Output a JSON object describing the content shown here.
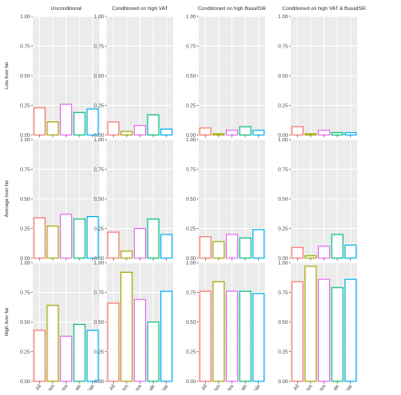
{
  "chart_data": {
    "type": "bar",
    "panel_type": "faceted-bar-grid",
    "col_titles": [
      "Unconditional",
      "Conditioned on high VAT",
      "Conditioned on high BasalISR",
      "Conditioned on high VAT & BasalISR"
    ],
    "row_titles": [
      "Low liver fat",
      "Average liver fat",
      "High liver fat"
    ],
    "categories": [
      "All",
      "Diabetes",
      "Non-diabetes",
      "Female",
      "Male"
    ],
    "category_colors": [
      "#F8766D",
      "#A3A500",
      "#E76BF3",
      "#00BF7D",
      "#00B0F6"
    ],
    "y_ticks": [
      0.0,
      0.25,
      0.5,
      0.75,
      1.0
    ],
    "y_tick_labels": [
      "0.00",
      "0.25",
      "0.50",
      "0.75",
      "1.00"
    ],
    "ylim": [
      0,
      1
    ],
    "grid": true,
    "panels": [
      [
        [
          0.23,
          0.11,
          0.26,
          0.19,
          0.22
        ],
        [
          0.11,
          0.03,
          0.08,
          0.17,
          0.05
        ],
        [
          0.06,
          0.01,
          0.04,
          0.07,
          0.04
        ],
        [
          0.07,
          0.01,
          0.04,
          0.02,
          0.02
        ]
      ],
      [
        [
          0.34,
          0.27,
          0.37,
          0.33,
          0.35
        ],
        [
          0.22,
          0.06,
          0.25,
          0.33,
          0.2
        ],
        [
          0.18,
          0.14,
          0.2,
          0.17,
          0.24
        ],
        [
          0.09,
          0.02,
          0.1,
          0.2,
          0.11
        ]
      ],
      [
        [
          0.43,
          0.64,
          0.38,
          0.48,
          0.43
        ],
        [
          0.66,
          0.92,
          0.69,
          0.5,
          0.76
        ],
        [
          0.76,
          0.84,
          0.76,
          0.76,
          0.74
        ],
        [
          0.84,
          0.97,
          0.86,
          0.79,
          0.86
        ]
      ]
    ]
  }
}
